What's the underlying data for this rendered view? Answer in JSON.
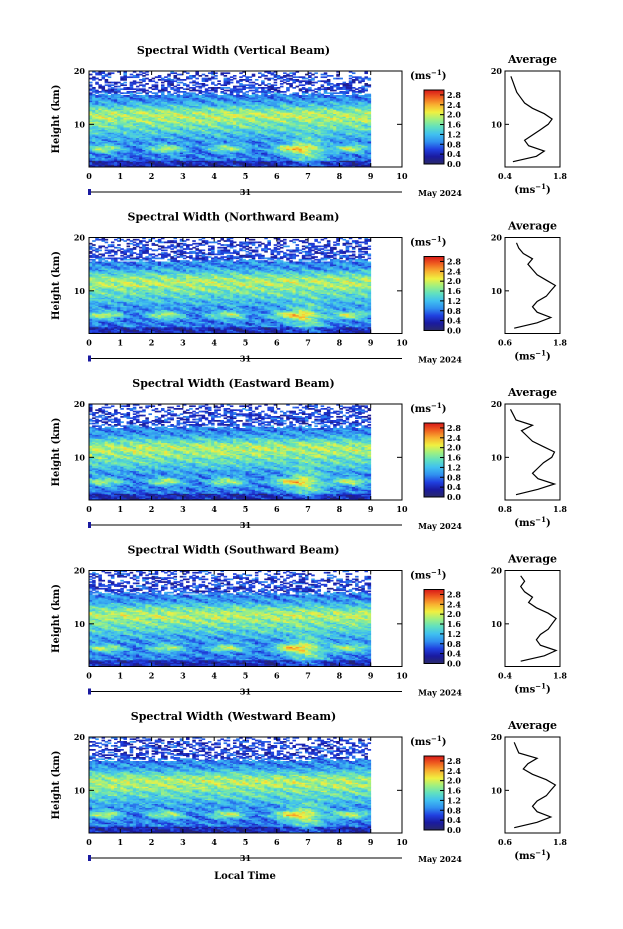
{
  "figure": {
    "x_label": "Local Time",
    "day_label": "31",
    "month_label": "May 2024",
    "average_title": "Average",
    "colorbar_unit_base": "(ms",
    "colorbar_unit_exp": "−1",
    "colorbar_unit_close": ")"
  },
  "colors": {
    "colormap": [
      "#2a2a6a",
      "#1a1aa0",
      "#2040e0",
      "#3090f0",
      "#40c0f0",
      "#60e0c0",
      "#a0f080",
      "#f0f040",
      "#f8b030",
      "#f06020",
      "#d81818"
    ]
  },
  "chart_data": [
    {
      "type": "heatmap",
      "title": "Spectral Width (Vertical Beam)",
      "ylabel": "Height (km)",
      "x_ticks": [
        "0",
        "1",
        "2",
        "3",
        "4",
        "5",
        "6",
        "7",
        "8",
        "9",
        "10"
      ],
      "xlim": [
        0,
        10
      ],
      "y_ticks": [
        "10",
        "20"
      ],
      "ylim": [
        2,
        20
      ],
      "data_x_range": [
        0,
        9
      ],
      "colorbar": {
        "ticks": [
          "0.0",
          "0.4",
          "0.8",
          "1.2",
          "1.6",
          "2.0",
          "2.4",
          "2.8"
        ],
        "range": [
          0,
          3.0
        ]
      },
      "average_profile": {
        "x_ticks": [
          "0.4",
          "1.8"
        ],
        "xlim": [
          0.4,
          1.8
        ],
        "y_ticks": [
          "10",
          "20"
        ],
        "ylim": [
          2,
          20
        ],
        "height": [
          3,
          4,
          5,
          6,
          7,
          8,
          9,
          10,
          11,
          12,
          13,
          14,
          15,
          16,
          17,
          18,
          19
        ],
        "width": [
          0.6,
          1.2,
          1.4,
          1.0,
          0.9,
          1.1,
          1.3,
          1.5,
          1.6,
          1.4,
          1.1,
          0.9,
          0.8,
          0.7,
          0.65,
          0.6,
          0.55
        ]
      }
    },
    {
      "type": "heatmap",
      "title": "Spectral Width (Northward Beam)",
      "ylabel": "Height (km)",
      "x_ticks": [
        "0",
        "1",
        "2",
        "3",
        "4",
        "5",
        "6",
        "7",
        "8",
        "9",
        "10"
      ],
      "xlim": [
        0,
        10
      ],
      "y_ticks": [
        "10",
        "20"
      ],
      "ylim": [
        2,
        20
      ],
      "data_x_range": [
        0,
        9
      ],
      "colorbar": {
        "ticks": [
          "0.0",
          "0.4",
          "0.8",
          "1.2",
          "1.6",
          "2.0",
          "2.4",
          "2.8"
        ],
        "range": [
          0,
          3.0
        ]
      },
      "average_profile": {
        "x_ticks": [
          "0.6",
          "1.8"
        ],
        "xlim": [
          0.6,
          1.8
        ],
        "y_ticks": [
          "10",
          "20"
        ],
        "ylim": [
          2,
          20
        ],
        "height": [
          3,
          4,
          5,
          6,
          7,
          8,
          9,
          10,
          11,
          12,
          13,
          14,
          15,
          16,
          17,
          18,
          19
        ],
        "width": [
          0.8,
          1.3,
          1.6,
          1.3,
          1.2,
          1.3,
          1.5,
          1.6,
          1.7,
          1.5,
          1.3,
          1.2,
          1.1,
          1.2,
          1.0,
          0.9,
          0.85
        ]
      }
    },
    {
      "type": "heatmap",
      "title": "Spectral Width (Eastward Beam)",
      "ylabel": "Height (km)",
      "x_ticks": [
        "0",
        "1",
        "2",
        "3",
        "4",
        "5",
        "6",
        "7",
        "8",
        "9",
        "10"
      ],
      "xlim": [
        0,
        10
      ],
      "y_ticks": [
        "10",
        "20"
      ],
      "ylim": [
        2,
        20
      ],
      "data_x_range": [
        0,
        9
      ],
      "colorbar": {
        "ticks": [
          "0.0",
          "0.4",
          "0.8",
          "1.2",
          "1.6",
          "2.0",
          "2.4",
          "2.8"
        ],
        "range": [
          0,
          3.0
        ]
      },
      "average_profile": {
        "x_ticks": [
          "0.8",
          "1.8"
        ],
        "xlim": [
          0.8,
          1.8
        ],
        "y_ticks": [
          "10",
          "20"
        ],
        "ylim": [
          2,
          20
        ],
        "height": [
          3,
          4,
          5,
          6,
          7,
          8,
          9,
          10,
          11,
          12,
          13,
          14,
          15,
          16,
          17,
          18,
          19
        ],
        "width": [
          1.0,
          1.4,
          1.7,
          1.4,
          1.3,
          1.4,
          1.5,
          1.65,
          1.7,
          1.5,
          1.3,
          1.2,
          1.1,
          1.3,
          1.0,
          0.95,
          0.9
        ]
      }
    },
    {
      "type": "heatmap",
      "title": "Spectral Width (Southward Beam)",
      "ylabel": "Height (km)",
      "x_ticks": [
        "0",
        "1",
        "2",
        "3",
        "4",
        "5",
        "6",
        "7",
        "8",
        "9",
        "10"
      ],
      "xlim": [
        0,
        10
      ],
      "y_ticks": [
        "10",
        "20"
      ],
      "ylim": [
        2,
        20
      ],
      "data_x_range": [
        0,
        9
      ],
      "colorbar": {
        "ticks": [
          "0.0",
          "0.4",
          "0.8",
          "1.2",
          "1.6",
          "2.0",
          "2.4",
          "2.8"
        ],
        "range": [
          0,
          3.0
        ]
      },
      "average_profile": {
        "x_ticks": [
          "0.4",
          "1.8"
        ],
        "xlim": [
          0.4,
          1.8
        ],
        "y_ticks": [
          "10",
          "20"
        ],
        "ylim": [
          2,
          20
        ],
        "height": [
          3,
          4,
          5,
          6,
          7,
          8,
          9,
          10,
          11,
          12,
          13,
          14,
          15,
          16,
          17,
          18,
          19
        ],
        "width": [
          0.8,
          1.4,
          1.7,
          1.3,
          1.2,
          1.3,
          1.5,
          1.6,
          1.7,
          1.5,
          1.2,
          1.0,
          1.1,
          0.9,
          0.8,
          0.9,
          0.8
        ]
      }
    },
    {
      "type": "heatmap",
      "title": "Spectral Width (Westward Beam)",
      "ylabel": "Height (km)",
      "x_ticks": [
        "0",
        "1",
        "2",
        "3",
        "4",
        "5",
        "6",
        "7",
        "8",
        "9",
        "10"
      ],
      "xlim": [
        0,
        10
      ],
      "y_ticks": [
        "10",
        "20"
      ],
      "ylim": [
        2,
        20
      ],
      "data_x_range": [
        0,
        9
      ],
      "colorbar": {
        "ticks": [
          "0.0",
          "0.4",
          "0.8",
          "1.2",
          "1.6",
          "2.0",
          "2.4",
          "2.8"
        ],
        "range": [
          0,
          3.0
        ]
      },
      "average_profile": {
        "x_ticks": [
          "0.6",
          "1.8"
        ],
        "xlim": [
          0.6,
          1.8
        ],
        "y_ticks": [
          "10",
          "20"
        ],
        "ylim": [
          2,
          20
        ],
        "height": [
          3,
          4,
          5,
          6,
          7,
          8,
          9,
          10,
          11,
          12,
          13,
          14,
          15,
          16,
          17,
          18,
          19
        ],
        "width": [
          0.8,
          1.3,
          1.6,
          1.3,
          1.2,
          1.3,
          1.5,
          1.6,
          1.7,
          1.5,
          1.2,
          1.0,
          1.1,
          1.3,
          0.9,
          0.85,
          0.8
        ]
      }
    }
  ]
}
